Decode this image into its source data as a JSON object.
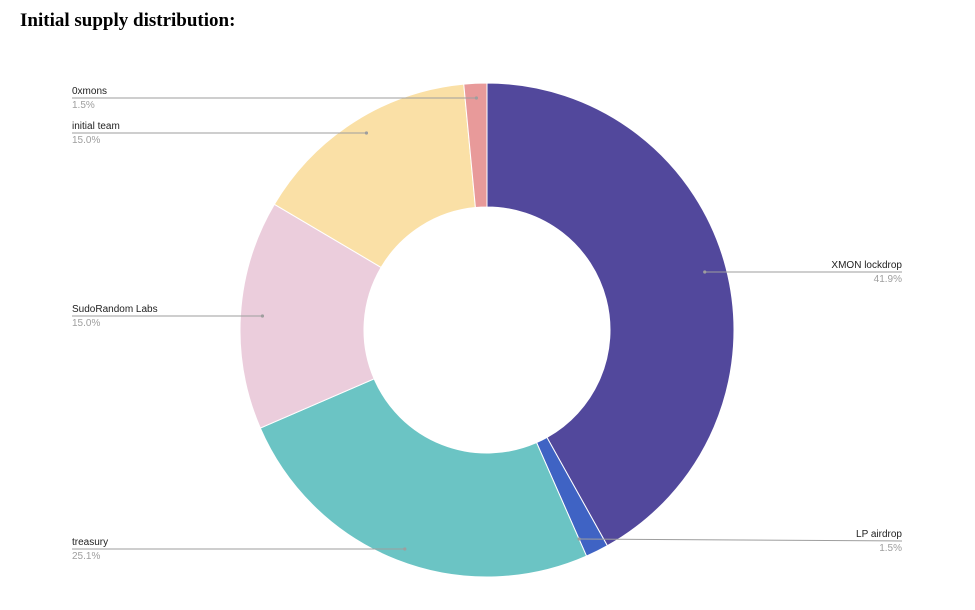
{
  "heading": "Initial supply distribution:",
  "chart_data": {
    "type": "pie",
    "donut": true,
    "slices": [
      {
        "label": "XMON lockdrop",
        "value": 41.9,
        "display": "41.9%",
        "color": "#52489c"
      },
      {
        "label": "LP airdrop",
        "value": 1.5,
        "display": "1.5%",
        "color": "#3f63c4"
      },
      {
        "label": "treasury",
        "value": 25.1,
        "display": "25.1%",
        "color": "#6bc4c4"
      },
      {
        "label": "SudoRandom Labs",
        "value": 15.0,
        "display": "15.0%",
        "color": "#ebcddc"
      },
      {
        "label": "initial team",
        "value": 15.0,
        "display": "15.0%",
        "color": "#fae0a6"
      },
      {
        "label": "0xmons",
        "value": 1.5,
        "display": "1.5%",
        "color": "#e89a9a"
      }
    ]
  }
}
